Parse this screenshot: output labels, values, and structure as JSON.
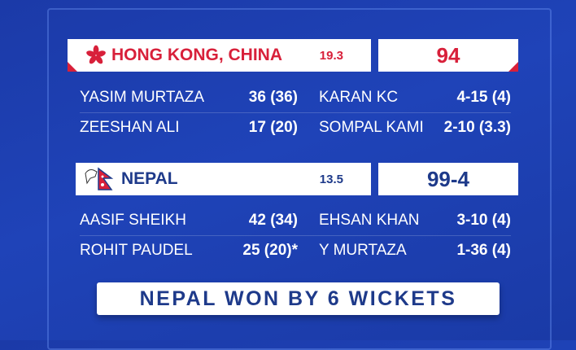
{
  "innings": [
    {
      "team": "HONG KONG, CHINA",
      "overs": "19.3",
      "score": "94",
      "flag": "hong-kong-flag-icon",
      "color": "#d8203a",
      "batting": [
        {
          "name": "YASIM MURTAZA",
          "fig": "36 (36)"
        },
        {
          "name": "ZEESHAN ALI",
          "fig": "17 (20)"
        }
      ],
      "bowling": [
        {
          "name": "KARAN KC",
          "fig": "4-15 (4)"
        },
        {
          "name": "SOMPAL KAMI",
          "fig": "2-10 (3.3)"
        }
      ]
    },
    {
      "team": "NEPAL",
      "overs": "13.5",
      "score": "99-4",
      "flag": "nepal-flag-icon",
      "color": "#1e3a8a",
      "batting": [
        {
          "name": "AASIF SHEIKH",
          "fig": "42 (34)"
        },
        {
          "name": "ROHIT PAUDEL",
          "fig": "25 (20)*"
        }
      ],
      "bowling": [
        {
          "name": "EHSAN KHAN",
          "fig": "3-10 (4)"
        },
        {
          "name": "Y MURTAZA",
          "fig": "1-36 (4)"
        }
      ]
    }
  ],
  "result": "NEPAL WON BY 6 WICKETS"
}
